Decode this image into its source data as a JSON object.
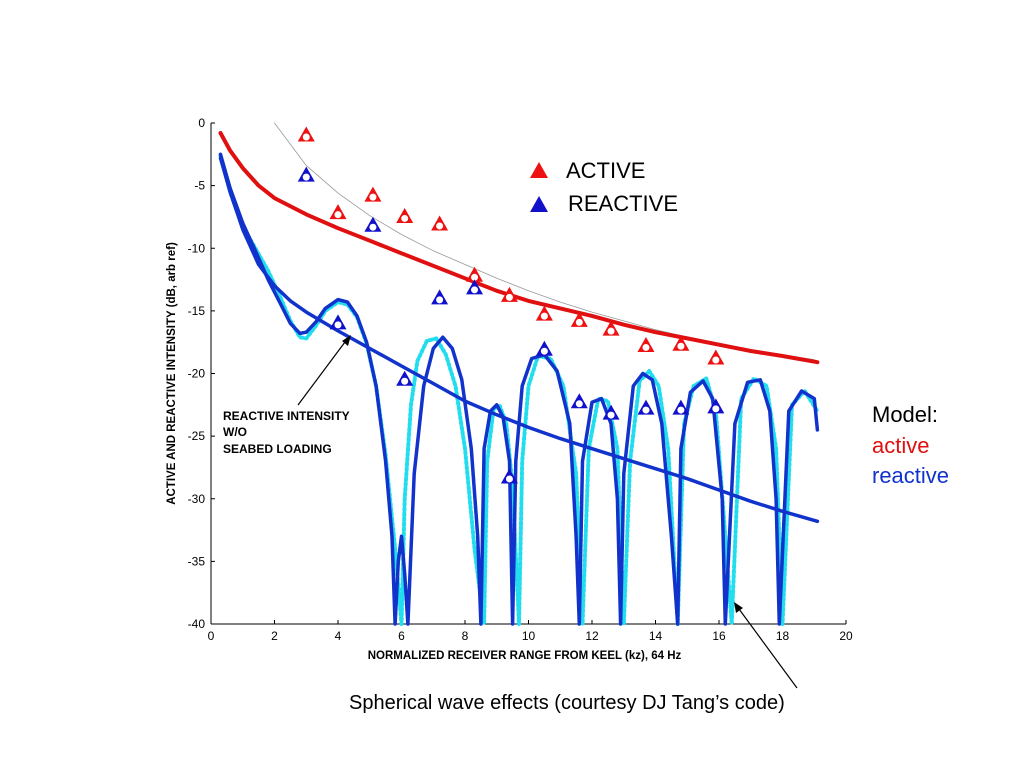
{
  "chart_data": {
    "type": "line",
    "xlabel": "NORMALIZED RECEIVER RANGE FROM KEEL (kz), 64 Hz",
    "ylabel": "ACTIVE AND REACTIVE INTENSITY (dB, arb ref)",
    "xlim": [
      0,
      20
    ],
    "ylim": [
      -40,
      0
    ],
    "x_ticks": [
      0,
      2,
      4,
      6,
      8,
      10,
      12,
      14,
      16,
      18,
      20
    ],
    "y_ticks": [
      0,
      -5,
      -10,
      -15,
      -20,
      -25,
      -30,
      -35,
      -40
    ],
    "grid": false,
    "legend": {
      "placement": "top-right",
      "entries": [
        {
          "label": "ACTIVE",
          "color": "#ee1111",
          "marker": "triangle"
        },
        {
          "label": "REACTIVE",
          "color": "#1111cc",
          "marker": "triangle"
        }
      ]
    },
    "measured": {
      "active": [
        [
          3.0,
          -1.0
        ],
        [
          4.0,
          -7.2
        ],
        [
          5.1,
          -5.8
        ],
        [
          6.1,
          -7.5
        ],
        [
          7.2,
          -8.1
        ],
        [
          8.3,
          -12.2
        ],
        [
          9.4,
          -13.8
        ],
        [
          10.5,
          -15.3
        ],
        [
          11.6,
          -15.8
        ],
        [
          12.6,
          -16.5
        ],
        [
          13.7,
          -17.8
        ],
        [
          14.8,
          -17.7
        ],
        [
          15.9,
          -18.8
        ]
      ],
      "reactive": [
        [
          3.0,
          -4.2
        ],
        [
          4.0,
          -16.0
        ],
        [
          5.1,
          -8.2
        ],
        [
          6.1,
          -20.5
        ],
        [
          7.2,
          -14.0
        ],
        [
          8.3,
          -13.2
        ],
        [
          9.4,
          -28.3
        ],
        [
          10.5,
          -18.1
        ],
        [
          11.6,
          -22.3
        ],
        [
          12.6,
          -23.2
        ],
        [
          13.7,
          -22.8
        ],
        [
          14.8,
          -22.8
        ],
        [
          15.9,
          -22.7
        ]
      ]
    },
    "model_active": {
      "color": "#e01010",
      "x": [
        0.3,
        0.6,
        1,
        1.5,
        2,
        3,
        4,
        5,
        6,
        7,
        8,
        9,
        10,
        11,
        12,
        13,
        14,
        15,
        16,
        17,
        18,
        19.1
      ],
      "y": [
        -0.8,
        -2.2,
        -3.6,
        -5.0,
        -6.0,
        -7.3,
        -8.4,
        -9.4,
        -10.4,
        -11.4,
        -12.4,
        -13.4,
        -14.2,
        -14.8,
        -15.4,
        -16.1,
        -16.7,
        -17.2,
        -17.7,
        -18.2,
        -18.6,
        -19.1
      ]
    },
    "model_reactive_smooth": {
      "color": "#1133cc",
      "x": [
        0.3,
        0.6,
        1,
        1.5,
        2,
        2.5,
        3,
        4,
        5,
        6,
        7,
        8,
        9,
        10,
        11,
        12,
        13,
        14,
        15,
        16,
        17,
        18,
        19.1
      ],
      "y": [
        -2.8,
        -5.5,
        -8.5,
        -11.3,
        -13.0,
        -14.2,
        -15.1,
        -16.6,
        -18.0,
        -19.4,
        -20.8,
        -22.2,
        -23.3,
        -24.3,
        -25.2,
        -26.0,
        -26.8,
        -27.6,
        -28.4,
        -29.3,
        -30.2,
        -31.0,
        -31.8
      ]
    },
    "model_reactive_oscillating": {
      "color": "#1133cc",
      "x": [
        0.3,
        0.6,
        1,
        1.4,
        1.8,
        2.2,
        2.5,
        2.8,
        3.0,
        3.3,
        3.6,
        4.0,
        4.3,
        4.6,
        4.9,
        5.2,
        5.5,
        5.7,
        5.8,
        5.9,
        6.0,
        6.1,
        6.2,
        6.4,
        6.7,
        7.0,
        7.3,
        7.6,
        7.9,
        8.2,
        8.4,
        8.5,
        8.6,
        8.8,
        9.0,
        9.2,
        9.4,
        9.5,
        9.6,
        9.8,
        10.1,
        10.5,
        10.9,
        11.3,
        11.5,
        11.6,
        11.7,
        12.0,
        12.3,
        12.6,
        12.8,
        12.9,
        13.0,
        13.3,
        13.6,
        13.9,
        14.2,
        14.5,
        14.7,
        14.8,
        15.1,
        15.5,
        15.8,
        16.1,
        16.2,
        16.5,
        16.9,
        17.3,
        17.6,
        17.8,
        17.9,
        18.2,
        18.6,
        19.0,
        19.1
      ],
      "y": [
        -2.5,
        -5.2,
        -8.0,
        -10.2,
        -12.5,
        -14.5,
        -16.0,
        -16.8,
        -16.7,
        -15.9,
        -14.8,
        -14.1,
        -14.3,
        -15.4,
        -17.5,
        -21.0,
        -27.0,
        -33.0,
        -40.0,
        -35.0,
        -33.0,
        -36.0,
        -40.0,
        -28.0,
        -21.0,
        -18.0,
        -17.1,
        -18.0,
        -20.5,
        -26.0,
        -33.0,
        -40.0,
        -26.0,
        -23.0,
        -22.5,
        -23.5,
        -27.0,
        -40.0,
        -27.0,
        -21.0,
        -18.8,
        -18.5,
        -19.8,
        -24.0,
        -33.0,
        -40.0,
        -27.0,
        -22.3,
        -22.0,
        -24.0,
        -30.0,
        -40.0,
        -28.0,
        -21.0,
        -20.0,
        -20.5,
        -24.0,
        -33.0,
        -40.0,
        -26.0,
        -21.5,
        -20.6,
        -22.0,
        -30.0,
        -40.0,
        -24.0,
        -20.7,
        -20.5,
        -23.0,
        -30.0,
        -40.0,
        -23.0,
        -21.4,
        -22.0,
        -24.5
      ]
    },
    "model_reactive_no_seabed": {
      "color": "#22ddee",
      "style": "dotted",
      "x": [
        0.3,
        0.6,
        1,
        1.4,
        1.8,
        2.2,
        2.5,
        2.8,
        3.0,
        3.3,
        3.6,
        4.0,
        4.3,
        4.6,
        4.9,
        5.2,
        5.5,
        5.8,
        6.0,
        6.1,
        6.3,
        6.5,
        6.8,
        7.1,
        7.4,
        7.7,
        8.0,
        8.3,
        8.6,
        8.7,
        8.9,
        9.1,
        9.3,
        9.5,
        9.7,
        9.8,
        10.0,
        10.3,
        10.7,
        11.1,
        11.5,
        11.7,
        11.9,
        12.2,
        12.5,
        12.8,
        13.0,
        13.2,
        13.5,
        13.8,
        14.1,
        14.4,
        14.7,
        14.9,
        15.2,
        15.6,
        15.9,
        16.2,
        16.4,
        16.7,
        17.1,
        17.5,
        17.8,
        18.0,
        18.3,
        18.7,
        19.1
      ],
      "y": [
        -2.6,
        -5.5,
        -8.3,
        -10.0,
        -11.8,
        -14.0,
        -15.8,
        -17.1,
        -17.2,
        -16.2,
        -15.0,
        -14.3,
        -14.5,
        -15.5,
        -17.6,
        -21.0,
        -26.5,
        -34.0,
        -40.0,
        -30.0,
        -22.5,
        -19.0,
        -17.4,
        -17.2,
        -18.5,
        -21.0,
        -26.0,
        -34.0,
        -40.0,
        -27.0,
        -22.8,
        -22.6,
        -24.0,
        -29.0,
        -40.0,
        -27.0,
        -21.0,
        -18.6,
        -18.8,
        -21.0,
        -28.0,
        -40.0,
        -26.0,
        -22.0,
        -22.2,
        -26.0,
        -40.0,
        -27.0,
        -20.6,
        -19.8,
        -21.0,
        -26.0,
        -40.0,
        -24.0,
        -21.0,
        -20.4,
        -23.0,
        -33.0,
        -40.0,
        -22.0,
        -20.4,
        -21.0,
        -26.0,
        -40.0,
        -22.5,
        -21.4,
        -23.0
      ]
    },
    "model_reference_thin": {
      "color": "#999999",
      "x": [
        2.0,
        3,
        4,
        5,
        6,
        7,
        8,
        9,
        10,
        11,
        12,
        13,
        14,
        15,
        16,
        17,
        18,
        19
      ],
      "y": [
        0.0,
        -3.4,
        -5.6,
        -7.4,
        -8.9,
        -10.2,
        -11.3,
        -12.4,
        -13.4,
        -14.3,
        -15.1,
        -15.8,
        -16.5,
        -17.1,
        -17.6,
        -18.1,
        -18.5,
        -18.9
      ]
    }
  },
  "model_legend": {
    "title": "Model:",
    "active_label": "active",
    "reactive_label": "reactive",
    "active_color": "#e01010",
    "reactive_color": "#1133cc"
  },
  "annotations": {
    "reactive_no_seabed": [
      "REACTIVE INTENSITY",
      "W/O",
      "SEABED LOADING"
    ]
  },
  "caption": "Spherical wave effects (courtesy DJ Tang’s code)"
}
